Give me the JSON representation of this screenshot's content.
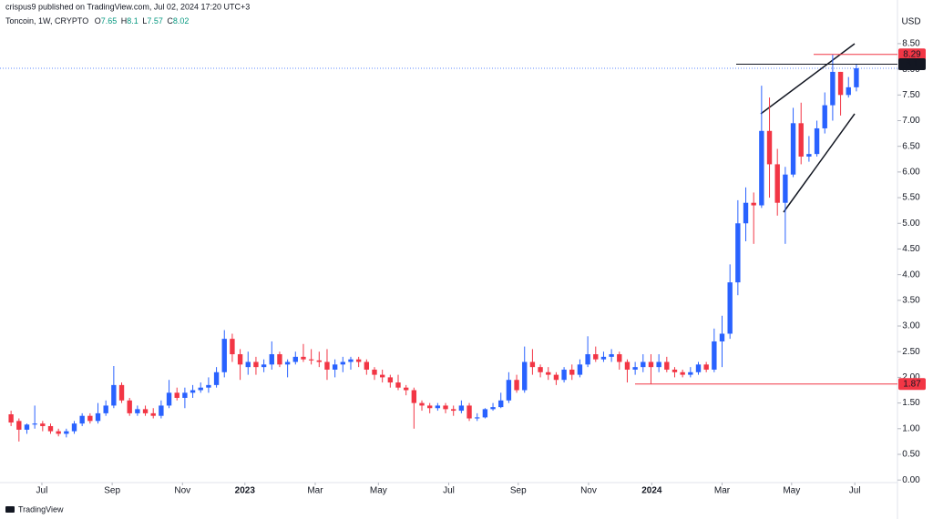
{
  "chart_data": {
    "type": "candlestick",
    "header": "crispus9 published on TradingView.com, Jul 02, 2024 17:20 UTC+3",
    "symbol": "Toncoin, 1W, CRYPTO",
    "ohlc_prefixes": [
      "O",
      "H",
      "L",
      "C"
    ],
    "currency": "USD",
    "branding": "TradingView",
    "up_color": "#2962ff",
    "down_color": "#f23645",
    "open": [
      1.28,
      1.15,
      0.98,
      1.08,
      1.1,
      1.05,
      0.95,
      0.9,
      0.95,
      1.1,
      1.25,
      1.15,
      1.3,
      1.45,
      1.85,
      1.55,
      1.3,
      1.38,
      1.3,
      1.25,
      1.45,
      1.7,
      1.6,
      1.7,
      1.75,
      1.8,
      1.85,
      2.1,
      2.75,
      2.45,
      2.2,
      2.3,
      2.2,
      2.25,
      2.45,
      2.25,
      2.3,
      2.4,
      2.35,
      2.33,
      2.3,
      2.15,
      2.25,
      2.3,
      2.35,
      2.3,
      2.15,
      2.05,
      2.0,
      1.9,
      1.8,
      1.75,
      1.5,
      1.45,
      1.4,
      1.45,
      1.38,
      1.35,
      1.45,
      1.2,
      1.22,
      1.38,
      1.42,
      1.55,
      1.95,
      1.75,
      2.3,
      2.2,
      2.1,
      2.05,
      1.95,
      2.15,
      2.05,
      2.25,
      2.45,
      2.35,
      2.4,
      2.45,
      2.3,
      2.15,
      2.2,
      2.3,
      2.2,
      2.3,
      2.15,
      2.1,
      2.05,
      2.1,
      2.25,
      2.15,
      2.7,
      2.85,
      3.85,
      5.0,
      5.4,
      5.35,
      6.8,
      6.15,
      5.4,
      5.95,
      6.95,
      6.3,
      6.35,
      6.85,
      7.3,
      7.95,
      7.5,
      7.65
    ],
    "high": [
      1.35,
      1.2,
      1.1,
      1.45,
      1.15,
      1.1,
      1.0,
      1.0,
      1.15,
      1.3,
      1.3,
      1.5,
      1.55,
      2.22,
      1.9,
      1.6,
      1.45,
      1.45,
      1.4,
      1.55,
      1.95,
      1.8,
      1.8,
      1.85,
      1.9,
      2.0,
      2.2,
      2.92,
      2.85,
      2.55,
      2.5,
      2.4,
      2.35,
      2.7,
      2.5,
      2.35,
      2.5,
      2.65,
      2.55,
      2.5,
      2.55,
      2.35,
      2.4,
      2.4,
      2.4,
      2.35,
      2.2,
      2.15,
      2.05,
      2.05,
      1.85,
      1.8,
      1.55,
      1.5,
      1.5,
      1.5,
      1.45,
      1.55,
      1.5,
      1.3,
      1.4,
      1.5,
      1.7,
      2.1,
      2.05,
      2.6,
      2.55,
      2.25,
      2.2,
      2.1,
      2.2,
      2.25,
      2.35,
      2.8,
      2.6,
      2.5,
      2.55,
      2.5,
      2.35,
      2.3,
      2.45,
      2.45,
      2.45,
      2.4,
      2.2,
      2.15,
      2.2,
      2.3,
      2.3,
      2.95,
      3.2,
      4.2,
      5.45,
      5.7,
      5.6,
      7.68,
      7.45,
      6.45,
      6.1,
      7.25,
      7.35,
      6.7,
      7.0,
      7.55,
      8.29,
      7.95,
      7.85,
      8.1
    ],
    "low": [
      1.05,
      0.75,
      0.9,
      1.0,
      0.95,
      0.9,
      0.85,
      0.83,
      0.9,
      1.05,
      1.1,
      1.1,
      1.25,
      1.4,
      1.5,
      1.25,
      1.25,
      1.25,
      1.2,
      1.2,
      1.4,
      1.55,
      1.4,
      1.6,
      1.7,
      1.7,
      1.8,
      2.0,
      2.3,
      1.95,
      2.05,
      2.05,
      2.1,
      2.15,
      2.2,
      2.0,
      2.25,
      2.3,
      2.25,
      2.2,
      1.95,
      2.0,
      2.1,
      2.15,
      2.2,
      2.05,
      1.95,
      1.9,
      1.8,
      1.75,
      1.65,
      1.0,
      1.35,
      1.3,
      1.35,
      1.3,
      1.25,
      1.3,
      1.15,
      1.15,
      1.2,
      1.35,
      1.4,
      1.5,
      1.7,
      1.7,
      2.05,
      2.0,
      1.95,
      1.85,
      1.9,
      1.95,
      2.0,
      2.2,
      2.3,
      2.3,
      2.3,
      2.15,
      1.9,
      2.05,
      2.1,
      1.87,
      2.1,
      2.1,
      2.0,
      2.0,
      2.0,
      2.05,
      2.1,
      2.1,
      2.2,
      2.75,
      3.6,
      4.65,
      4.6,
      5.3,
      5.5,
      5.15,
      4.6,
      5.9,
      6.15,
      6.2,
      6.3,
      6.75,
      7.0,
      7.1,
      7.45,
      7.57
    ],
    "close": [
      1.12,
      0.98,
      1.08,
      1.1,
      1.05,
      0.95,
      0.9,
      0.95,
      1.1,
      1.25,
      1.15,
      1.3,
      1.45,
      1.85,
      1.55,
      1.3,
      1.38,
      1.3,
      1.25,
      1.45,
      1.7,
      1.6,
      1.7,
      1.75,
      1.8,
      1.85,
      2.1,
      2.75,
      2.45,
      2.25,
      2.3,
      2.2,
      2.25,
      2.45,
      2.25,
      2.3,
      2.4,
      2.35,
      2.33,
      2.3,
      2.15,
      2.25,
      2.3,
      2.35,
      2.3,
      2.15,
      2.05,
      2.0,
      1.9,
      1.8,
      1.75,
      1.5,
      1.45,
      1.4,
      1.45,
      1.38,
      1.35,
      1.45,
      1.2,
      1.22,
      1.38,
      1.42,
      1.55,
      1.95,
      1.75,
      2.3,
      2.2,
      2.1,
      2.05,
      1.95,
      2.15,
      2.05,
      2.25,
      2.45,
      2.35,
      2.4,
      2.45,
      2.3,
      2.15,
      2.2,
      2.3,
      2.2,
      2.3,
      2.15,
      2.1,
      2.05,
      2.1,
      2.25,
      2.15,
      2.7,
      2.85,
      3.85,
      5.0,
      5.4,
      5.35,
      6.8,
      6.15,
      5.4,
      5.95,
      6.95,
      6.3,
      6.35,
      6.85,
      7.3,
      7.95,
      7.5,
      7.65,
      8.02
    ],
    "xlim": [
      -1.4,
      112.2
    ],
    "xticks": [
      {
        "value": 3.9,
        "label": "Jul"
      },
      {
        "value": 12.8,
        "label": "Sep"
      },
      {
        "value": 21.7,
        "label": "Nov"
      },
      {
        "value": 29.6,
        "label": "2023"
      },
      {
        "value": 38.5,
        "label": "Mar"
      },
      {
        "value": 46.5,
        "label": "May"
      },
      {
        "value": 55.4,
        "label": "Jul"
      },
      {
        "value": 64.2,
        "label": "Sep"
      },
      {
        "value": 73.1,
        "label": "Nov"
      },
      {
        "value": 81.1,
        "label": "2024"
      },
      {
        "value": 90.0,
        "label": "Mar"
      },
      {
        "value": 98.8,
        "label": "May"
      },
      {
        "value": 106.8,
        "label": "Jul"
      }
    ],
    "ylim": [
      -0.05,
      9.35
    ],
    "yticks": [
      {
        "value": 0,
        "label": "0.00"
      },
      {
        "value": 0.5,
        "label": "0.50"
      },
      {
        "value": 1,
        "label": "1.00"
      },
      {
        "value": 1.5,
        "label": "1.50"
      },
      {
        "value": 2,
        "label": "2.00"
      },
      {
        "value": 2.5,
        "label": "2.50"
      },
      {
        "value": 3,
        "label": "3.00"
      },
      {
        "value": 3.5,
        "label": "3.50"
      },
      {
        "value": 4,
        "label": "4.00"
      },
      {
        "value": 4.5,
        "label": "4.50"
      },
      {
        "value": 5,
        "label": "5.00"
      },
      {
        "value": 5.5,
        "label": "5.50"
      },
      {
        "value": 6,
        "label": "6.00"
      },
      {
        "value": 6.5,
        "label": "6.50"
      },
      {
        "value": 7,
        "label": "7.00"
      },
      {
        "value": 7.5,
        "label": "7.50"
      },
      {
        "value": 8,
        "label": "8.00"
      },
      {
        "value": 8.5,
        "label": "8.50"
      }
    ],
    "price_labels": [
      {
        "value": 8.29,
        "color": "#f23645"
      },
      {
        "value": 8.1,
        "color": "#131722"
      },
      {
        "value": 1.87,
        "color": "#f23645"
      }
    ]
  }
}
